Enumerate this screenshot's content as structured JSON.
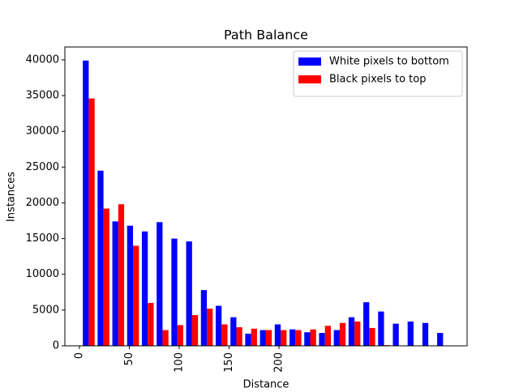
{
  "chart_data": {
    "type": "bar",
    "title": "Path Balance",
    "x_label": "Distance",
    "y_label": "Instances",
    "x": [
      9.3,
      24.1,
      38.9,
      53.7,
      68.5,
      83.3,
      98.1,
      112.9,
      127.7,
      142.5,
      157.3,
      172.1,
      186.9,
      201.7,
      216.5,
      231.3,
      246.1,
      260.9,
      275.7,
      290.5,
      305.3,
      320.1,
      334.9,
      349.7,
      364.5
    ],
    "series": [
      {
        "name": "White pixels to bottom",
        "color": "#0000ff",
        "values": [
          39900,
          24500,
          17400,
          16800,
          16000,
          17300,
          15000,
          14600,
          7800,
          5600,
          4000,
          1700,
          2200,
          3000,
          2300,
          1900,
          1800,
          2200,
          4000,
          6100,
          4800,
          3100,
          3400,
          3200,
          1800
        ]
      },
      {
        "name": "Black pixels to top",
        "color": "#ff0000",
        "values": [
          34600,
          19200,
          19800,
          14000,
          6000,
          2200,
          2900,
          4300,
          5200,
          3000,
          2600,
          2400,
          2200,
          2200,
          2200,
          2300,
          2800,
          3200,
          3400,
          2500,
          100,
          null,
          null,
          null,
          null
        ]
      }
    ],
    "xlim": [
      -14.6,
      388.6
    ],
    "xticks": [
      0,
      50,
      100,
      150,
      200
    ],
    "ylim": [
      0,
      41800
    ],
    "yticks": [
      0,
      5000,
      10000,
      15000,
      20000,
      25000,
      30000,
      35000,
      40000
    ],
    "legend": "upper right"
  }
}
